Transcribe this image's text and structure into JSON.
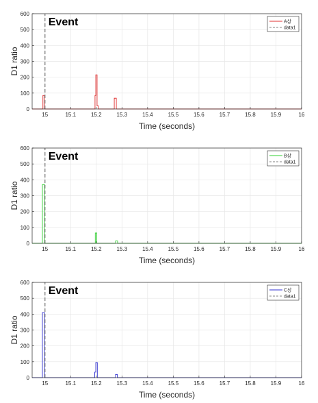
{
  "chart_data": [
    {
      "type": "line",
      "xlabel": "Time (seconds)",
      "ylabel": "D1 ratio",
      "xlim": [
        14.95,
        16
      ],
      "ylim": [
        0,
        600
      ],
      "xticks": [
        "15",
        "15.1",
        "15.2",
        "15.3",
        "15.4",
        "15.5",
        "15.6",
        "15.7",
        "15.8",
        "15.9",
        "16"
      ],
      "yticks": [
        "0",
        "100",
        "200",
        "300",
        "400",
        "500",
        "600"
      ],
      "grid": true,
      "legend_position": "top-right",
      "annotation": "Event",
      "event_x": 15.0,
      "series": [
        {
          "name": "A상",
          "color": "#e03030",
          "style": "solid",
          "x": [
            14.95,
            14.992,
            14.992,
            14.998,
            14.998,
            15.195,
            15.195,
            15.198,
            15.198,
            15.203,
            15.203,
            15.208,
            15.208,
            15.27,
            15.27,
            15.278,
            15.278,
            16
          ],
          "y": [
            0,
            0,
            85,
            85,
            0,
            0,
            85,
            85,
            215,
            215,
            20,
            20,
            0,
            0,
            68,
            68,
            0,
            0
          ]
        },
        {
          "name": "data1",
          "color": "#808080",
          "style": "dashed",
          "x": [
            15.0,
            15.0
          ],
          "y": [
            0,
            600
          ]
        }
      ]
    },
    {
      "type": "line",
      "xlabel": "Time (seconds)",
      "ylabel": "D1 ratio",
      "xlim": [
        14.95,
        16
      ],
      "ylim": [
        0,
        600
      ],
      "xticks": [
        "15",
        "15.1",
        "15.2",
        "15.3",
        "15.4",
        "15.5",
        "15.6",
        "15.7",
        "15.8",
        "15.9",
        "16"
      ],
      "yticks": [
        "0",
        "100",
        "200",
        "300",
        "400",
        "500",
        "600"
      ],
      "grid": true,
      "legend_position": "top-right",
      "annotation": "Event",
      "event_x": 15.0,
      "series": [
        {
          "name": "B상",
          "color": "#30d030",
          "style": "solid",
          "x": [
            14.95,
            14.99,
            14.99,
            14.998,
            14.998,
            15.196,
            15.196,
            15.202,
            15.202,
            15.275,
            15.275,
            15.283,
            15.283,
            16
          ],
          "y": [
            0,
            0,
            370,
            370,
            0,
            0,
            65,
            65,
            0,
            0,
            15,
            15,
            0,
            0
          ]
        },
        {
          "name": "data1",
          "color": "#808080",
          "style": "dashed",
          "x": [
            15.0,
            15.0
          ],
          "y": [
            0,
            600
          ]
        }
      ]
    },
    {
      "type": "line",
      "xlabel": "Time (seconds)",
      "ylabel": "D1 ratio",
      "xlim": [
        14.95,
        16
      ],
      "ylim": [
        0,
        600
      ],
      "xticks": [
        "15",
        "15.1",
        "15.2",
        "15.3",
        "15.4",
        "15.5",
        "15.6",
        "15.7",
        "15.8",
        "15.9",
        "16"
      ],
      "yticks": [
        "0",
        "100",
        "200",
        "300",
        "400",
        "500",
        "600"
      ],
      "grid": true,
      "legend_position": "top-right",
      "annotation": "Event",
      "event_x": 15.0,
      "series": [
        {
          "name": "C상",
          "color": "#3030d0",
          "style": "solid",
          "x": [
            14.95,
            14.99,
            14.99,
            14.998,
            14.998,
            15.194,
            15.194,
            15.198,
            15.198,
            15.204,
            15.204,
            15.275,
            15.275,
            15.282,
            15.282,
            16
          ],
          "y": [
            0,
            0,
            410,
            410,
            0,
            0,
            35,
            35,
            95,
            95,
            0,
            0,
            20,
            20,
            0,
            0
          ]
        },
        {
          "name": "data1",
          "color": "#808080",
          "style": "dashed",
          "x": [
            15.0,
            15.0
          ],
          "y": [
            0,
            600
          ]
        }
      ]
    }
  ]
}
